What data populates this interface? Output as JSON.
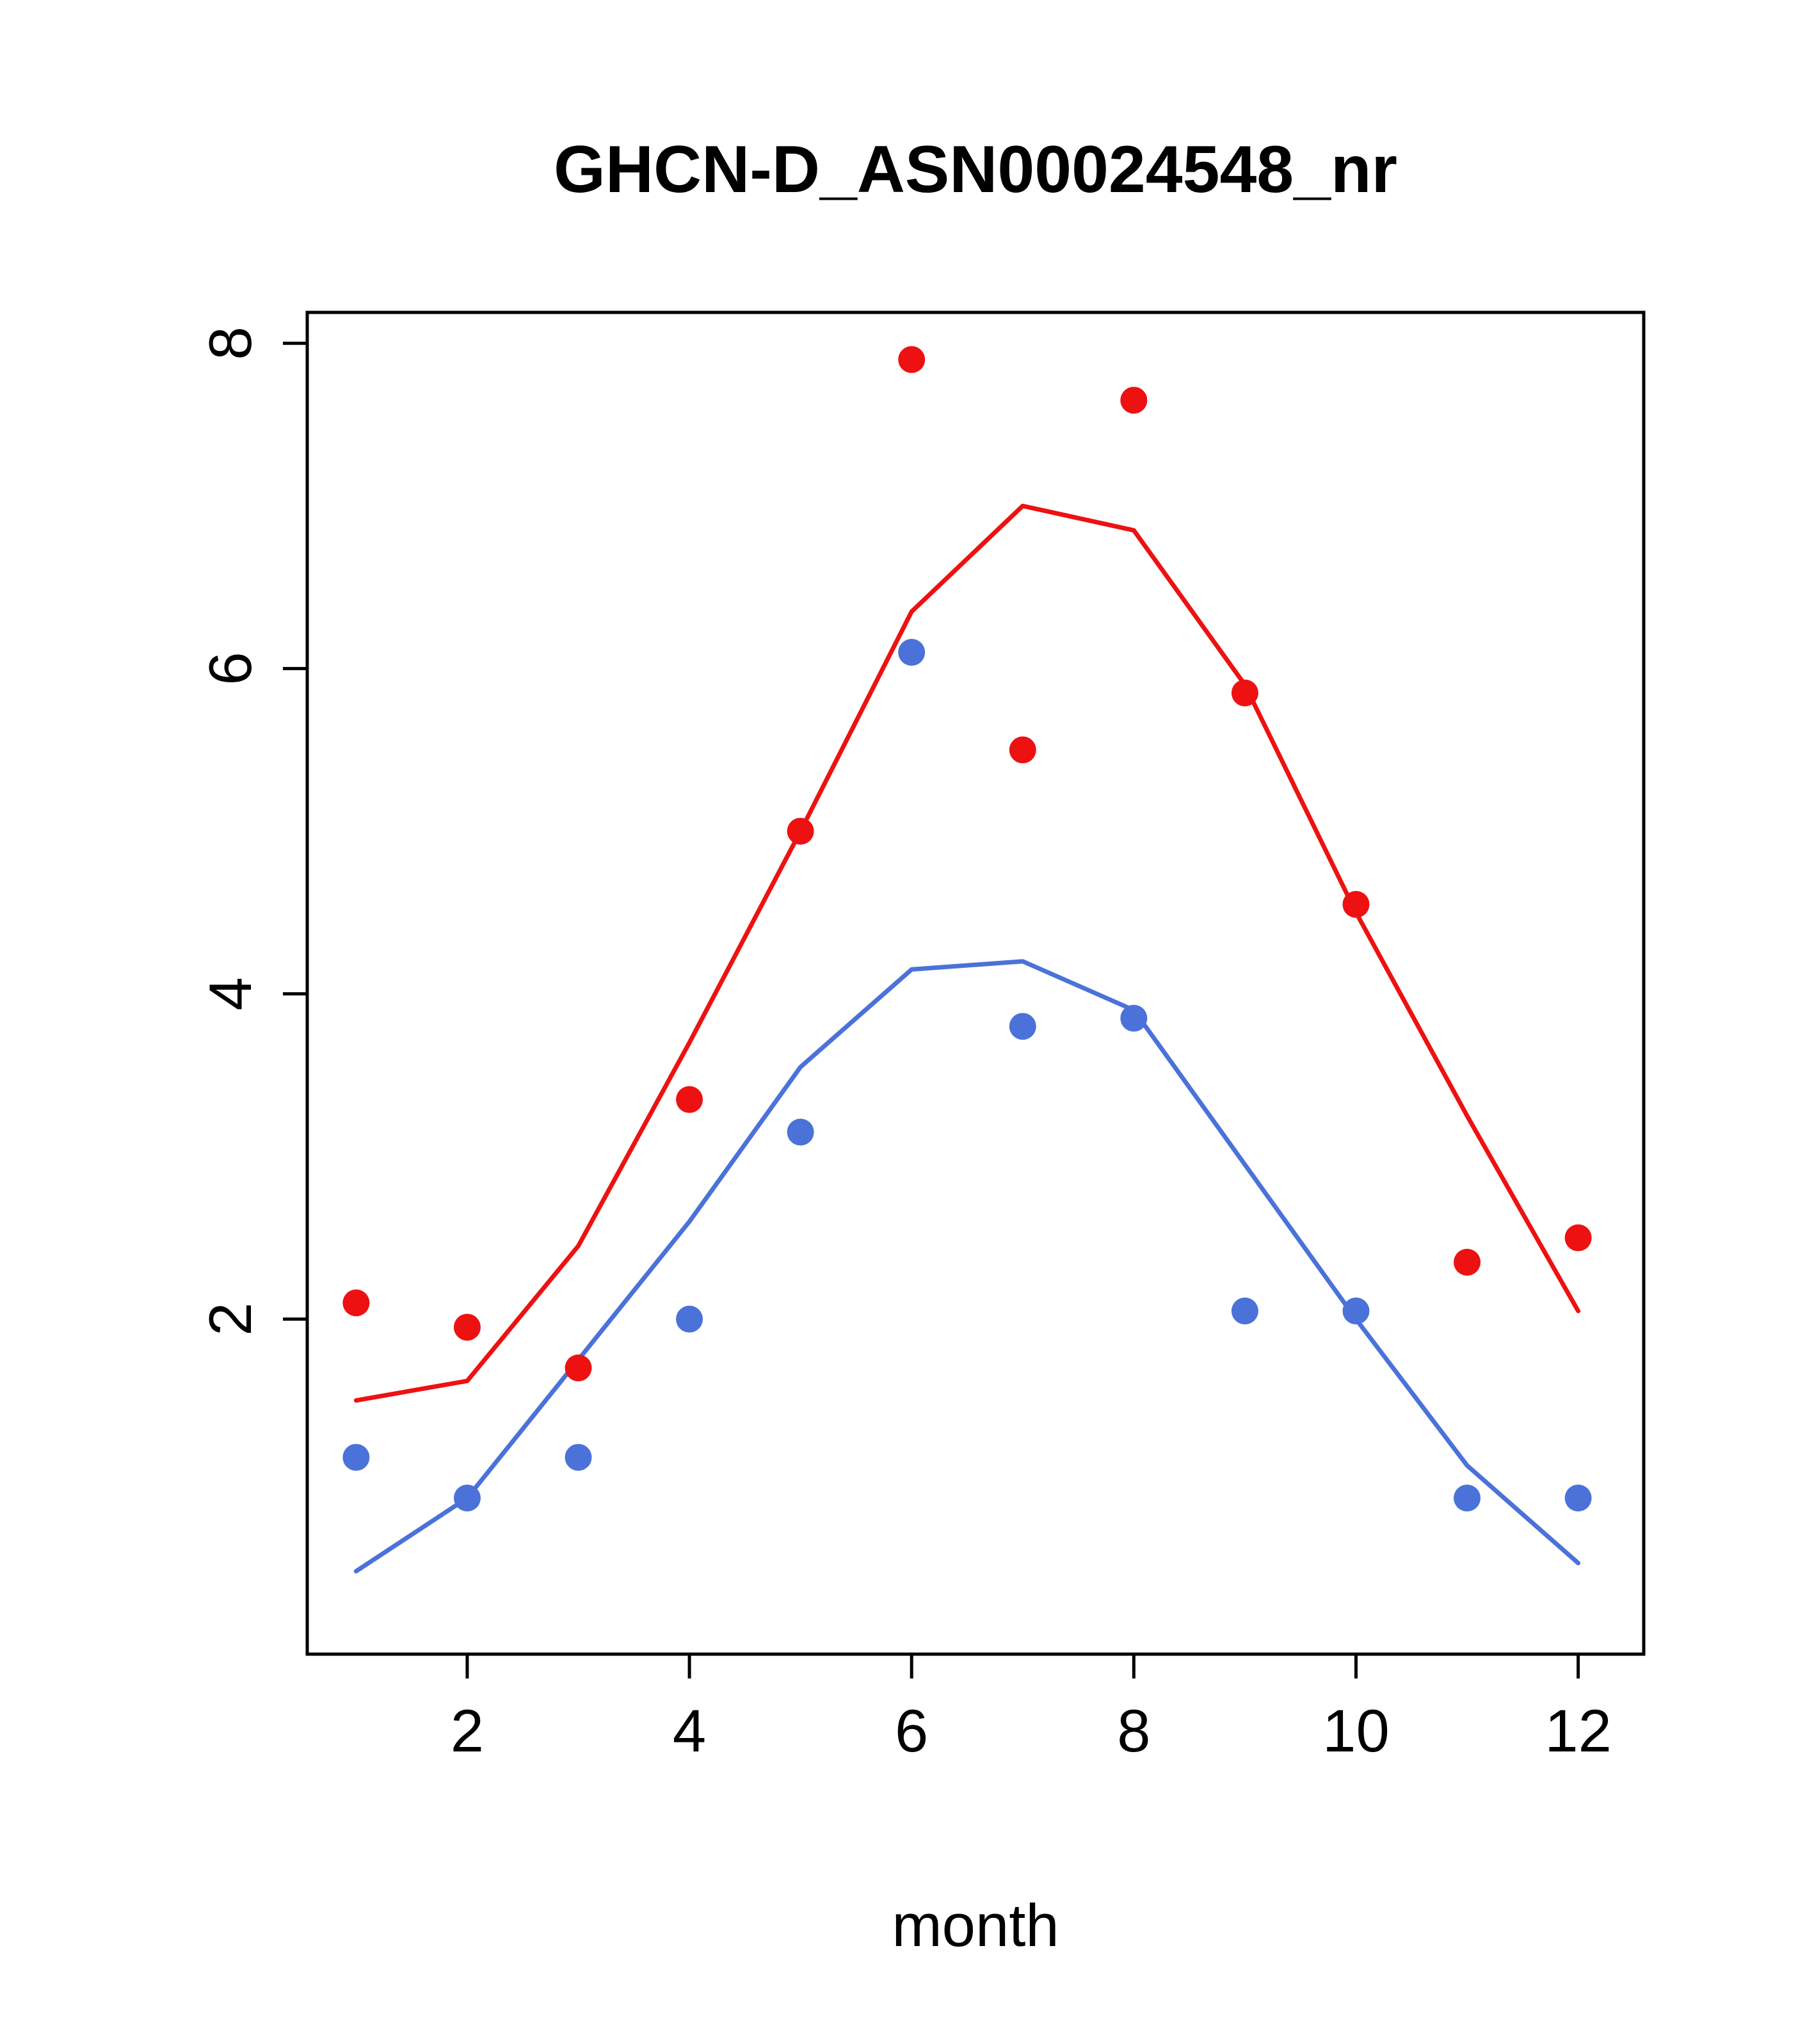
{
  "chart_data": {
    "type": "scatter",
    "title": "GHCN-D_ASN00024548_nr",
    "xlabel": "month",
    "ylabel": "",
    "xlim": [
      0.56,
      12.59
    ],
    "ylim": [
      -0.06,
      8.19
    ],
    "xticks": [
      2,
      4,
      6,
      8,
      10,
      12
    ],
    "yticks": [
      2,
      4,
      6,
      8
    ],
    "grid": false,
    "legend": "none",
    "x": [
      1,
      2,
      3,
      4,
      5,
      6,
      7,
      8,
      9,
      10,
      11,
      12
    ],
    "colors": {
      "red": "#ee1111",
      "blue": "#4a72d9"
    },
    "series": [
      {
        "name": "red-points",
        "type": "points",
        "color": "#ee1111",
        "values": [
          2.1,
          1.95,
          1.7,
          3.35,
          5.0,
          7.9,
          5.5,
          7.65,
          5.85,
          4.55,
          2.35,
          2.5
        ]
      },
      {
        "name": "red-fit-line",
        "type": "line",
        "color": "#ee1111",
        "values": [
          1.5,
          1.62,
          2.45,
          3.7,
          5.0,
          6.35,
          7.0,
          6.85,
          5.9,
          4.5,
          3.25,
          2.05
        ]
      },
      {
        "name": "blue-points",
        "type": "points",
        "color": "#4a72d9",
        "values": [
          1.15,
          0.9,
          1.15,
          2.0,
          3.15,
          6.1,
          3.8,
          3.85,
          2.05,
          2.05,
          0.9,
          0.9
        ]
      },
      {
        "name": "blue-fit-line",
        "type": "line",
        "color": "#4a72d9",
        "values": [
          0.45,
          0.9,
          1.75,
          2.6,
          3.55,
          4.15,
          4.2,
          3.9,
          2.95,
          2.0,
          1.1,
          0.5
        ]
      }
    ]
  }
}
